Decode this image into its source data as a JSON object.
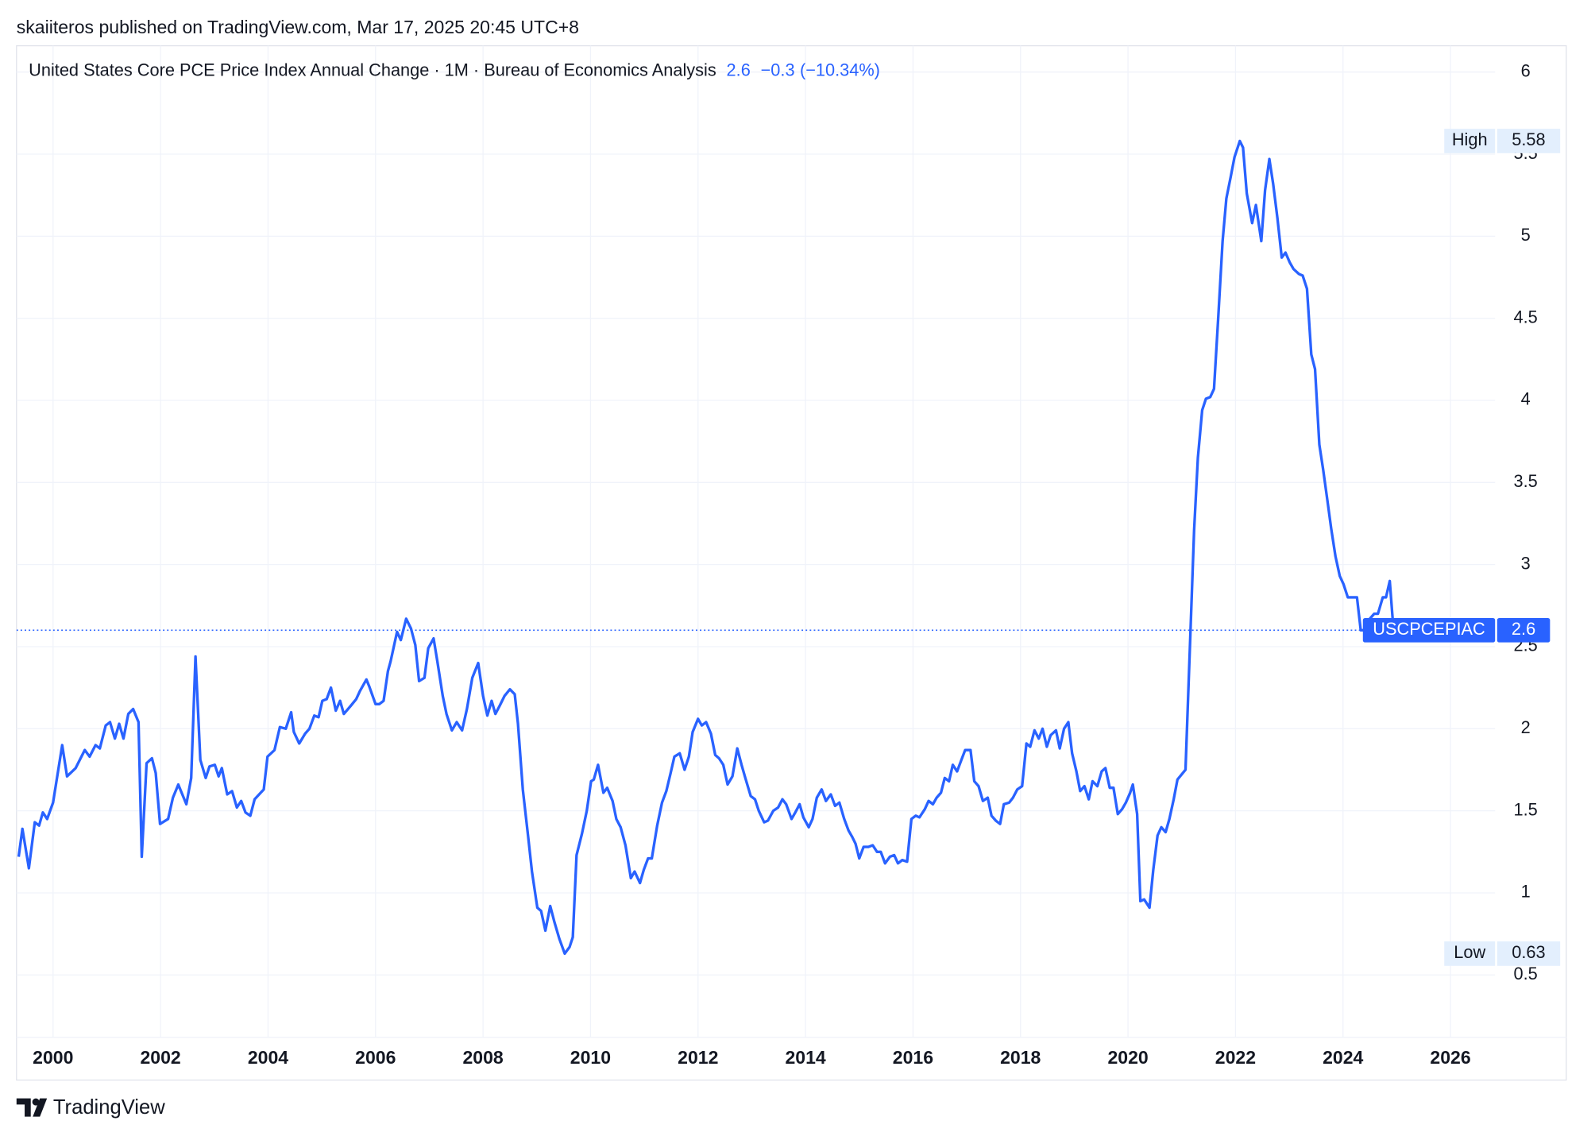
{
  "header": {
    "publisher": "skaiiteros published on TradingView.com, Mar 17, 2025 20:45 UTC+8"
  },
  "chart_data": {
    "type": "line",
    "title": "United States Core PCE Price Index Annual Change · 1M · Bureau of Economics Analysis",
    "last_value": 2.6,
    "change": "−0.3",
    "change_pct": "(−10.34%)",
    "symbol": "USCPCEPIAC",
    "color": "#2962ff",
    "x": [
      1999.36,
      1999.43,
      1999.55,
      1999.66,
      1999.74,
      1999.81,
      1999.89,
      2000.0,
      2000.17,
      2000.26,
      2000.42,
      2000.59,
      2000.68,
      2000.79,
      2000.87,
      2000.98,
      2001.06,
      2001.15,
      2001.23,
      2001.31,
      2001.4,
      2001.49,
      2001.59,
      2001.65,
      2001.74,
      2001.84,
      2001.91,
      2001.99,
      2002.14,
      2002.23,
      2002.33,
      2002.48,
      2002.57,
      2002.65,
      2002.74,
      2002.84,
      2002.91,
      2003.01,
      2003.08,
      2003.14,
      2003.24,
      2003.33,
      2003.42,
      2003.5,
      2003.58,
      2003.67,
      2003.75,
      2003.92,
      2003.99,
      2004.12,
      2004.22,
      2004.33,
      2004.43,
      2004.48,
      2004.58,
      2004.69,
      2004.77,
      2004.86,
      2004.94,
      2005.01,
      2005.09,
      2005.17,
      2005.26,
      2005.34,
      2005.41,
      2005.54,
      2005.64,
      2005.71,
      2005.83,
      2005.88,
      2006.0,
      2006.07,
      2006.15,
      2006.23,
      2006.28,
      2006.4,
      2006.47,
      2006.57,
      2006.66,
      2006.74,
      2006.81,
      2006.91,
      2006.98,
      2007.08,
      2007.15,
      2007.25,
      2007.32,
      2007.42,
      2007.51,
      2007.61,
      2007.7,
      2007.8,
      2007.91,
      2008.0,
      2008.08,
      2008.16,
      2008.23,
      2008.31,
      2008.4,
      2008.5,
      2008.59,
      2008.65,
      2008.74,
      2008.84,
      2008.91,
      2009.01,
      2009.08,
      2009.16,
      2009.25,
      2009.33,
      2009.42,
      2009.52,
      2009.61,
      2009.67,
      2009.74,
      2009.84,
      2009.93,
      2010.01,
      2010.06,
      2010.14,
      2010.24,
      2010.31,
      2010.41,
      2010.48,
      2010.56,
      2010.65,
      2010.75,
      2010.82,
      2010.92,
      2010.99,
      2011.07,
      2011.14,
      2011.24,
      2011.33,
      2011.41,
      2011.49,
      2011.56,
      2011.66,
      2011.75,
      2011.83,
      2011.9,
      2012.0,
      2012.07,
      2012.15,
      2012.24,
      2012.32,
      2012.39,
      2012.47,
      2012.55,
      2012.64,
      2012.73,
      2012.81,
      2012.88,
      2012.98,
      2013.06,
      2013.13,
      2013.23,
      2013.3,
      2013.4,
      2013.49,
      2013.57,
      2013.64,
      2013.74,
      2013.81,
      2013.89,
      2013.96,
      2014.06,
      2014.13,
      2014.21,
      2014.3,
      2014.38,
      2014.47,
      2014.55,
      2014.63,
      2014.72,
      2014.8,
      2014.87,
      2014.93,
      2015.0,
      2015.08,
      2015.17,
      2015.25,
      2015.33,
      2015.4,
      2015.48,
      2015.57,
      2015.65,
      2015.72,
      2015.8,
      2015.89,
      2015.97,
      2016.05,
      2016.12,
      2016.22,
      2016.29,
      2016.37,
      2016.44,
      2016.52,
      2016.59,
      2016.67,
      2016.74,
      2016.82,
      2016.9,
      2016.97,
      2017.07,
      2017.14,
      2017.22,
      2017.3,
      2017.39,
      2017.46,
      2017.54,
      2017.62,
      2017.69,
      2017.79,
      2017.86,
      2017.94,
      2018.03,
      2018.11,
      2018.18,
      2018.26,
      2018.34,
      2018.41,
      2018.49,
      2018.56,
      2018.66,
      2018.73,
      2018.81,
      2018.89,
      2018.96,
      2019.04,
      2019.11,
      2019.19,
      2019.27,
      2019.34,
      2019.43,
      2019.51,
      2019.58,
      2019.66,
      2019.73,
      2019.81,
      2019.89,
      2019.96,
      2020.04,
      2020.09,
      2020.17,
      2020.23,
      2020.3,
      2020.4,
      2020.47,
      2020.55,
      2020.62,
      2020.7,
      2020.77,
      2020.85,
      2020.92,
      2021.02,
      2021.07,
      2021.15,
      2021.23,
      2021.3,
      2021.38,
      2021.45,
      2021.53,
      2021.6,
      2021.68,
      2021.76,
      2021.83,
      2021.91,
      2021.98,
      2022.08,
      2022.14,
      2022.21,
      2022.31,
      2022.38,
      2022.48,
      2022.55,
      2022.63,
      2022.7,
      2022.78,
      2022.86,
      2022.93,
      2023.01,
      2023.08,
      2023.18,
      2023.25,
      2023.33,
      2023.41,
      2023.48,
      2023.56,
      2023.63,
      2023.71,
      2023.78,
      2023.86,
      2023.94,
      2024.01,
      2024.09,
      2024.18,
      2024.26,
      2024.33,
      2024.43,
      2024.5,
      2024.58,
      2024.65,
      2024.74,
      2024.8,
      2024.87,
      2024.94
    ],
    "values": [
      1.22,
      1.39,
      1.15,
      1.43,
      1.41,
      1.49,
      1.45,
      1.55,
      1.9,
      1.71,
      1.76,
      1.87,
      1.83,
      1.9,
      1.88,
      2.02,
      2.04,
      1.94,
      2.03,
      1.94,
      2.09,
      2.12,
      2.04,
      1.22,
      1.79,
      1.82,
      1.73,
      1.42,
      1.45,
      1.58,
      1.66,
      1.54,
      1.7,
      2.44,
      1.81,
      1.7,
      1.77,
      1.78,
      1.71,
      1.76,
      1.6,
      1.62,
      1.52,
      1.56,
      1.49,
      1.47,
      1.57,
      1.63,
      1.83,
      1.87,
      2.01,
      2.0,
      2.1,
      1.98,
      1.91,
      1.97,
      2.0,
      2.08,
      2.07,
      2.17,
      2.18,
      2.25,
      2.11,
      2.17,
      2.09,
      2.14,
      2.18,
      2.23,
      2.3,
      2.26,
      2.15,
      2.15,
      2.17,
      2.35,
      2.41,
      2.59,
      2.54,
      2.67,
      2.61,
      2.51,
      2.29,
      2.31,
      2.49,
      2.55,
      2.41,
      2.2,
      2.09,
      1.99,
      2.04,
      1.99,
      2.12,
      2.31,
      2.4,
      2.2,
      2.08,
      2.17,
      2.09,
      2.14,
      2.2,
      2.24,
      2.21,
      2.03,
      1.63,
      1.34,
      1.13,
      0.91,
      0.89,
      0.77,
      0.92,
      0.82,
      0.72,
      0.63,
      0.67,
      0.73,
      1.23,
      1.36,
      1.5,
      1.68,
      1.69,
      1.78,
      1.61,
      1.64,
      1.56,
      1.45,
      1.4,
      1.29,
      1.09,
      1.13,
      1.06,
      1.14,
      1.21,
      1.21,
      1.41,
      1.55,
      1.62,
      1.73,
      1.83,
      1.85,
      1.75,
      1.83,
      1.98,
      2.06,
      2.02,
      2.04,
      1.97,
      1.84,
      1.82,
      1.78,
      1.66,
      1.71,
      1.88,
      1.78,
      1.7,
      1.59,
      1.57,
      1.5,
      1.43,
      1.44,
      1.5,
      1.52,
      1.57,
      1.54,
      1.45,
      1.49,
      1.54,
      1.46,
      1.4,
      1.45,
      1.58,
      1.63,
      1.56,
      1.6,
      1.53,
      1.55,
      1.45,
      1.38,
      1.34,
      1.3,
      1.21,
      1.28,
      1.28,
      1.29,
      1.25,
      1.25,
      1.18,
      1.22,
      1.23,
      1.18,
      1.2,
      1.19,
      1.45,
      1.47,
      1.46,
      1.51,
      1.56,
      1.54,
      1.58,
      1.61,
      1.7,
      1.68,
      1.78,
      1.74,
      1.81,
      1.87,
      1.87,
      1.68,
      1.65,
      1.56,
      1.58,
      1.47,
      1.44,
      1.42,
      1.54,
      1.55,
      1.58,
      1.63,
      1.65,
      1.91,
      1.89,
      1.99,
      1.94,
      2.0,
      1.89,
      1.96,
      1.99,
      1.88,
      2.0,
      2.04,
      1.85,
      1.74,
      1.62,
      1.65,
      1.57,
      1.68,
      1.65,
      1.74,
      1.76,
      1.64,
      1.64,
      1.48,
      1.51,
      1.55,
      1.61,
      1.66,
      1.48,
      0.95,
      0.96,
      0.91,
      1.14,
      1.35,
      1.4,
      1.37,
      1.45,
      1.57,
      1.69,
      1.73,
      1.75,
      2.48,
      3.21,
      3.65,
      3.94,
      4.01,
      4.02,
      4.07,
      4.51,
      4.97,
      5.23,
      5.36,
      5.48,
      5.58,
      5.54,
      5.26,
      5.08,
      5.19,
      4.97,
      5.28,
      5.47,
      5.32,
      5.11,
      4.87,
      4.9,
      4.84,
      4.8,
      4.77,
      4.76,
      4.68,
      4.28,
      4.19,
      3.73,
      3.58,
      3.39,
      3.22,
      3.05,
      2.93,
      2.88,
      2.8,
      2.8,
      2.8,
      2.6,
      2.6,
      2.67,
      2.7,
      2.7,
      2.8,
      2.8,
      2.9,
      2.6
    ],
    "xlim": [
      1999.32,
      2026.83
    ],
    "ylim": [
      0.12,
      6.16
    ],
    "xticks": [
      2000,
      2002,
      2004,
      2006,
      2008,
      2010,
      2012,
      2014,
      2016,
      2018,
      2020,
      2022,
      2024,
      2026
    ],
    "yticks": [
      0.5,
      1,
      1.5,
      2,
      2.5,
      3,
      3.5,
      4,
      4.5,
      5,
      5.5,
      6
    ],
    "grid": true,
    "high": {
      "label": "High",
      "value": 5.58
    },
    "low": {
      "label": "Low",
      "value": 0.63
    }
  },
  "footer": {
    "brand": "TradingView"
  }
}
